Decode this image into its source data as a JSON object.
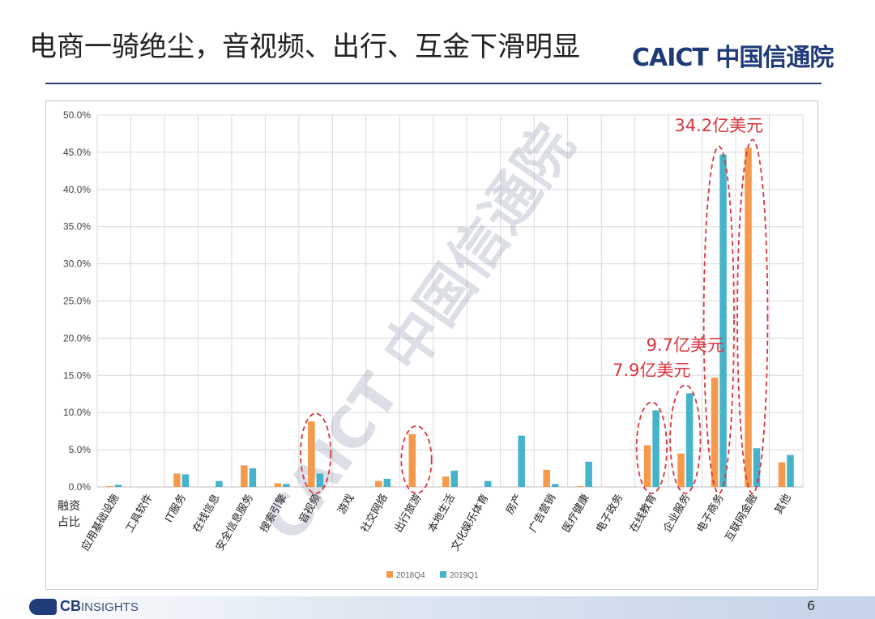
{
  "page": {
    "title": "电商一骑绝尘，音视频、出行、互金下滑明显",
    "logo_text": "CAICT 中国信通院",
    "footer_logo_cb": "CB",
    "footer_logo_insights": "INSIGHTS",
    "page_number": "6",
    "watermark": "CAICT 中国信通院"
  },
  "chart_data": {
    "type": "bar",
    "ylabel": "融资占比",
    "ylim": [
      0,
      50
    ],
    "yticks": [
      "0.0%",
      "5.0%",
      "10.0%",
      "15.0%",
      "20.0%",
      "25.0%",
      "30.0%",
      "35.0%",
      "40.0%",
      "45.0%",
      "50.0%"
    ],
    "grid": true,
    "legend_position": "bottom",
    "categories": [
      "应用基础设施",
      "工具软件",
      "IT服务",
      "在线信息",
      "安全信息服务",
      "搜索引擎",
      "音视频",
      "游戏",
      "社交网络",
      "出行旅游",
      "本地生活",
      "文化娱乐体育",
      "房产",
      "广告营销",
      "医疗健康",
      "电子政务",
      "在线教育",
      "企业服务",
      "电子商务",
      "互联网金融",
      "其他"
    ],
    "series": [
      {
        "name": "2018Q4",
        "color": "#f59a4a",
        "values": [
          0.1,
          0.0,
          1.8,
          0.0,
          2.9,
          0.5,
          8.8,
          0.0,
          0.8,
          7.1,
          1.4,
          0.0,
          0.0,
          2.3,
          0.1,
          0.0,
          5.6,
          4.5,
          14.7,
          45.6,
          3.3
        ]
      },
      {
        "name": "2019Q1",
        "color": "#45b3c9",
        "values": [
          0.3,
          0.0,
          1.7,
          0.8,
          2.5,
          0.4,
          1.8,
          0.0,
          1.1,
          0.0,
          2.2,
          0.8,
          6.9,
          0.4,
          3.4,
          0.0,
          10.3,
          12.6,
          44.7,
          5.2,
          4.3
        ]
      }
    ],
    "annotations": [
      {
        "text": "34.2亿美元",
        "category": "电子商务",
        "y": 47.8
      },
      {
        "text": "9.7亿美元",
        "category": "企业服务",
        "y": 18.3
      },
      {
        "text": "7.9亿美元",
        "category": "在线教育",
        "y": 14.9
      }
    ],
    "highlight_ellipses": [
      "音视频",
      "出行旅游",
      "在线教育",
      "企业服务",
      "电子商务",
      "互联网金融"
    ],
    "annotation_color": "#d9363e"
  }
}
